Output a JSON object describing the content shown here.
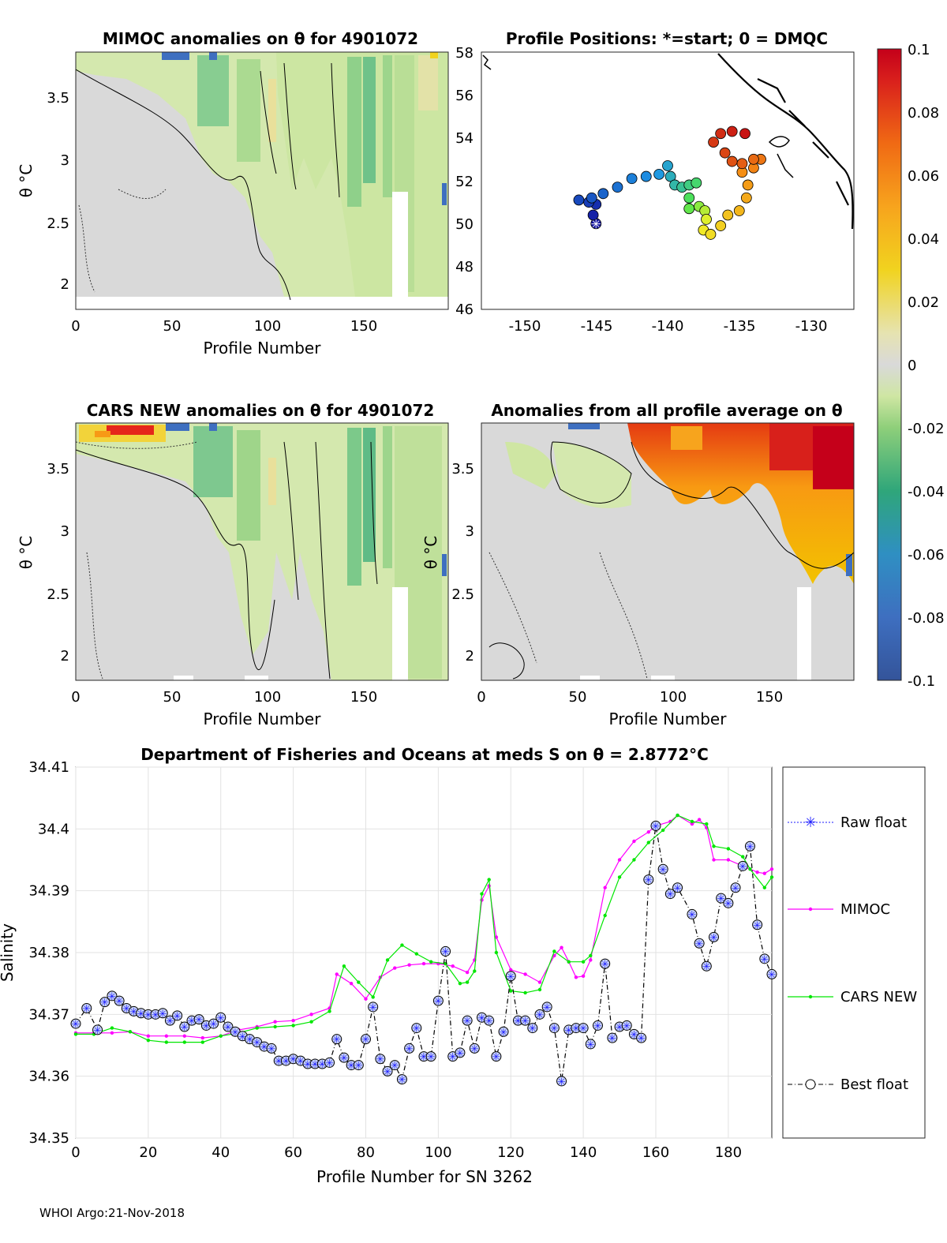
{
  "footer": "WHOI Argo:21-Nov-2018",
  "colors": {
    "neutral": "#d9d9d9",
    "green_light": "#cfe6a3",
    "green_mid": "#9fd58a",
    "green_dark": "#4fb887",
    "yellow": "#f2e28a",
    "orange": "#f7a41d",
    "red": "#d8001a",
    "blue": "#2d4f9e",
    "mimoc": "#ff00ff",
    "cars": "#00e600",
    "raw": "#1a1aff",
    "best": "#000000"
  },
  "panels": {
    "mimoc": {
      "title": "MIMOC anomalies on θ  for 4901072",
      "ylabel": "θ °C",
      "xlabel": "Profile Number",
      "xticks": [
        "0",
        "50",
        "100",
        "150"
      ],
      "yticks": [
        "2",
        "2.5",
        "3",
        "3.5"
      ]
    },
    "positions": {
      "title": "Profile Positions: *=start; 0 = DMQC",
      "xticks": [
        "-150",
        "-145",
        "-140",
        "-135",
        "-130"
      ],
      "yticks": [
        "46",
        "48",
        "50",
        "52",
        "54",
        "56",
        "58"
      ]
    },
    "cars": {
      "title": "CARS NEW anomalies on θ for 4901072",
      "ylabel": "θ °C",
      "xlabel": "Profile Number",
      "xticks": [
        "0",
        "50",
        "100",
        "150"
      ],
      "yticks": [
        "2",
        "2.5",
        "3",
        "3.5"
      ]
    },
    "allavg": {
      "title": "Anomalies from all profile average on θ",
      "ylabel": "θ °C",
      "xlabel": "Profile Number",
      "xticks": [
        "0",
        "50",
        "100",
        "150"
      ],
      "yticks": [
        "2",
        "2.5",
        "3",
        "3.5"
      ]
    }
  },
  "colorbar": {
    "ticks": [
      "0.1",
      "0.08",
      "0.06",
      "0.04",
      "0.02",
      "0",
      "-0.02",
      "-0.04",
      "-0.06",
      "-0.08",
      "-0.1"
    ]
  },
  "chart_data": [
    {
      "type": "scatter",
      "title": "Profile Positions: *=start; 0 = DMQC",
      "xlabel": "",
      "ylabel": "",
      "xlim": [
        -153,
        -127
      ],
      "ylim": [
        46,
        58
      ],
      "start": [
        -145,
        50
      ],
      "track": [
        [
          -145,
          50
        ],
        [
          -145.2,
          50.4
        ],
        [
          -145,
          50.9
        ],
        [
          -145.5,
          51
        ],
        [
          -146.2,
          51.1
        ],
        [
          -145.3,
          51.2
        ],
        [
          -144.5,
          51.4
        ],
        [
          -143.5,
          51.7
        ],
        [
          -142.5,
          52.1
        ],
        [
          -141.5,
          52.2
        ],
        [
          -140.6,
          52.3
        ],
        [
          -140,
          52.7
        ],
        [
          -139.8,
          52.2
        ],
        [
          -139.5,
          51.8
        ],
        [
          -139,
          51.7
        ],
        [
          -138.5,
          51.8
        ],
        [
          -138,
          51.9
        ],
        [
          -138.5,
          51.2
        ],
        [
          -138.5,
          50.7
        ],
        [
          -137.8,
          50.8
        ],
        [
          -137.4,
          50.6
        ],
        [
          -137.3,
          50.2
        ],
        [
          -137.5,
          49.7
        ],
        [
          -137,
          49.5
        ],
        [
          -136.3,
          49.9
        ],
        [
          -135.8,
          50.4
        ],
        [
          -135,
          50.6
        ],
        [
          -134.5,
          51.2
        ],
        [
          -134.4,
          51.8
        ],
        [
          -134.8,
          52.4
        ],
        [
          -134,
          52.6
        ],
        [
          -133.5,
          53
        ],
        [
          -134,
          53
        ],
        [
          -134.8,
          52.8
        ],
        [
          -135.5,
          52.9
        ],
        [
          -136,
          53.3
        ],
        [
          -136.8,
          53.8
        ],
        [
          -136.3,
          54.2
        ],
        [
          -135.5,
          54.3
        ],
        [
          -134.6,
          54.2
        ]
      ]
    },
    {
      "type": "line",
      "title": "Department of Fisheries and Oceans at meds S on θ = 2.8772°C",
      "xlabel": "Profile Number for SN 3262",
      "ylabel": "Salinity",
      "xlim": [
        0,
        192
      ],
      "ylim": [
        34.35,
        34.41
      ],
      "xticks": [
        "0",
        "20",
        "40",
        "60",
        "80",
        "100",
        "120",
        "140",
        "160",
        "180"
      ],
      "yticks": [
        "34.35",
        "34.36",
        "34.37",
        "34.38",
        "34.39",
        "34.4",
        "34.41"
      ],
      "legend": [
        "Raw float",
        "MIMOC",
        "CARS NEW",
        "Best float"
      ],
      "series": [
        {
          "name": "MIMOC",
          "points": [
            [
              0,
              34.367
            ],
            [
              5,
              34.367
            ],
            [
              10,
              34.367
            ],
            [
              15,
              34.3672
            ],
            [
              20,
              34.3665
            ],
            [
              25,
              34.3665
            ],
            [
              30,
              34.3665
            ],
            [
              35,
              34.3662
            ],
            [
              40,
              34.3665
            ],
            [
              45,
              34.3675
            ],
            [
              50,
              34.368
            ],
            [
              55,
              34.3688
            ],
            [
              60,
              34.369
            ],
            [
              65,
              34.37
            ],
            [
              70,
              34.371
            ],
            [
              72,
              34.3765
            ],
            [
              76,
              34.375
            ],
            [
              80,
              34.3725
            ],
            [
              84,
              34.376
            ],
            [
              88,
              34.3775
            ],
            [
              92,
              34.378
            ],
            [
              96,
              34.3782
            ],
            [
              100,
              34.3782
            ],
            [
              104,
              34.3778
            ],
            [
              108,
              34.3768
            ],
            [
              110,
              34.3788
            ],
            [
              112,
              34.3885
            ],
            [
              114,
              34.3908
            ],
            [
              116,
              34.3825
            ],
            [
              120,
              34.3772
            ],
            [
              124,
              34.3765
            ],
            [
              128,
              34.3752
            ],
            [
              132,
              34.3795
            ],
            [
              134,
              34.3808
            ],
            [
              136,
              34.3785
            ],
            [
              138,
              34.376
            ],
            [
              140,
              34.3762
            ],
            [
              142,
              34.3788
            ],
            [
              146,
              34.3905
            ],
            [
              150,
              34.395
            ],
            [
              154,
              34.398
            ],
            [
              158,
              34.3995
            ],
            [
              160,
              34.4005
            ],
            [
              164,
              34.4012
            ],
            [
              166,
              34.4022
            ],
            [
              170,
              34.4008
            ],
            [
              172,
              34.4015
            ],
            [
              174,
              34.4002
            ],
            [
              176,
              34.395
            ],
            [
              180,
              34.395
            ],
            [
              184,
              34.394
            ],
            [
              188,
              34.393
            ],
            [
              190,
              34.3928
            ],
            [
              192,
              34.3935
            ]
          ]
        },
        {
          "name": "CARS NEW",
          "points": [
            [
              0,
              34.3668
            ],
            [
              5,
              34.3668
            ],
            [
              10,
              34.3678
            ],
            [
              15,
              34.3672
            ],
            [
              20,
              34.3658
            ],
            [
              25,
              34.3655
            ],
            [
              30,
              34.3655
            ],
            [
              35,
              34.3655
            ],
            [
              40,
              34.3665
            ],
            [
              45,
              34.367
            ],
            [
              50,
              34.3678
            ],
            [
              55,
              34.368
            ],
            [
              60,
              34.3682
            ],
            [
              65,
              34.3688
            ],
            [
              70,
              34.3705
            ],
            [
              74,
              34.3778
            ],
            [
              78,
              34.3752
            ],
            [
              82,
              34.3728
            ],
            [
              86,
              34.3788
            ],
            [
              90,
              34.3812
            ],
            [
              94,
              34.3798
            ],
            [
              98,
              34.3785
            ],
            [
              102,
              34.3782
            ],
            [
              106,
              34.375
            ],
            [
              108,
              34.3752
            ],
            [
              110,
              34.377
            ],
            [
              112,
              34.3895
            ],
            [
              114,
              34.3918
            ],
            [
              116,
              34.38
            ],
            [
              120,
              34.3738
            ],
            [
              124,
              34.3735
            ],
            [
              128,
              34.374
            ],
            [
              132,
              34.3802
            ],
            [
              136,
              34.3785
            ],
            [
              140,
              34.3785
            ],
            [
              142,
              34.3795
            ],
            [
              146,
              34.386
            ],
            [
              150,
              34.3922
            ],
            [
              154,
              34.395
            ],
            [
              158,
              34.3978
            ],
            [
              162,
              34.3998
            ],
            [
              166,
              34.4022
            ],
            [
              170,
              34.4012
            ],
            [
              174,
              34.4008
            ],
            [
              176,
              34.3972
            ],
            [
              180,
              34.3968
            ],
            [
              184,
              34.3955
            ],
            [
              186,
              34.3935
            ],
            [
              190,
              34.3905
            ],
            [
              192,
              34.3922
            ]
          ]
        },
        {
          "name": "Best float",
          "points": [
            [
              0,
              34.3685
            ],
            [
              3,
              34.371
            ],
            [
              6,
              34.3675
            ],
            [
              8,
              34.372
            ],
            [
              10,
              34.373
            ],
            [
              12,
              34.3722
            ],
            [
              14,
              34.371
            ],
            [
              16,
              34.3705
            ],
            [
              18,
              34.3702
            ],
            [
              20,
              34.37
            ],
            [
              22,
              34.37
            ],
            [
              24,
              34.3702
            ],
            [
              26,
              34.369
            ],
            [
              28,
              34.3698
            ],
            [
              30,
              34.368
            ],
            [
              32,
              34.369
            ],
            [
              34,
              34.3692
            ],
            [
              36,
              34.3682
            ],
            [
              38,
              34.3685
            ],
            [
              40,
              34.3695
            ],
            [
              42,
              34.368
            ],
            [
              44,
              34.3672
            ],
            [
              46,
              34.3665
            ],
            [
              48,
              34.366
            ],
            [
              50,
              34.3655
            ],
            [
              52,
              34.3648
            ],
            [
              54,
              34.3645
            ],
            [
              56,
              34.3625
            ],
            [
              58,
              34.3625
            ],
            [
              60,
              34.3628
            ],
            [
              62,
              34.3625
            ],
            [
              64,
              34.362
            ],
            [
              66,
              34.362
            ],
            [
              68,
              34.362
            ],
            [
              70,
              34.3622
            ],
            [
              72,
              34.366
            ],
            [
              74,
              34.363
            ],
            [
              76,
              34.3618
            ],
            [
              78,
              34.3618
            ],
            [
              80,
              34.366
            ],
            [
              82,
              34.3712
            ],
            [
              84,
              34.3628
            ],
            [
              86,
              34.3608
            ],
            [
              88,
              34.3618
            ],
            [
              90,
              34.3595
            ],
            [
              92,
              34.3645
            ],
            [
              94,
              34.3678
            ],
            [
              96,
              34.3632
            ],
            [
              98,
              34.3632
            ],
            [
              100,
              34.3722
            ],
            [
              102,
              34.3802
            ],
            [
              104,
              34.3632
            ],
            [
              106,
              34.3638
            ],
            [
              108,
              34.369
            ],
            [
              110,
              34.3645
            ],
            [
              112,
              34.3695
            ],
            [
              114,
              34.369
            ],
            [
              116,
              34.3632
            ],
            [
              118,
              34.3672
            ],
            [
              120,
              34.3762
            ],
            [
              122,
              34.369
            ],
            [
              124,
              34.369
            ],
            [
              126,
              34.3678
            ],
            [
              128,
              34.37
            ],
            [
              130,
              34.3712
            ],
            [
              132,
              34.3678
            ],
            [
              134,
              34.3592
            ],
            [
              136,
              34.3675
            ],
            [
              138,
              34.3678
            ],
            [
              140,
              34.3678
            ],
            [
              142,
              34.3652
            ],
            [
              144,
              34.3682
            ],
            [
              146,
              34.3782
            ],
            [
              148,
              34.3662
            ],
            [
              150,
              34.368
            ],
            [
              152,
              34.3682
            ],
            [
              154,
              34.3668
            ],
            [
              156,
              34.3662
            ],
            [
              158,
              34.3918
            ],
            [
              160,
              34.4005
            ],
            [
              162,
              34.3935
            ],
            [
              164,
              34.3895
            ],
            [
              166,
              34.3905
            ],
            [
              170,
              34.3862
            ],
            [
              172,
              34.3815
            ],
            [
              174,
              34.3778
            ],
            [
              176,
              34.3825
            ],
            [
              178,
              34.3888
            ],
            [
              180,
              34.388
            ],
            [
              182,
              34.3905
            ],
            [
              184,
              34.394
            ],
            [
              186,
              34.3972
            ],
            [
              188,
              34.3845
            ],
            [
              190,
              34.379
            ],
            [
              192,
              34.3765
            ]
          ]
        }
      ]
    }
  ]
}
